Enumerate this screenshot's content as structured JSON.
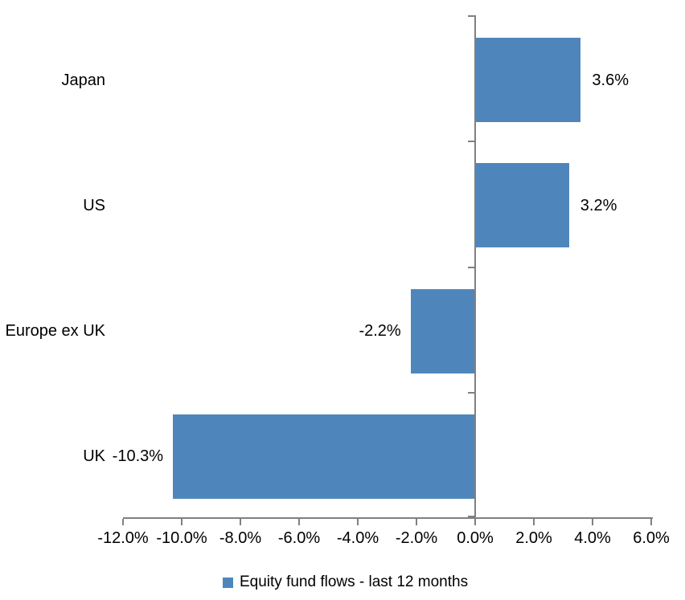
{
  "chart_data": {
    "type": "bar",
    "orientation": "horizontal",
    "title": "",
    "categories": [
      "Japan",
      "US",
      "Europe ex UK",
      "UK"
    ],
    "series": [
      {
        "name": "Equity fund flows - last 12 months",
        "values": [
          3.6,
          3.2,
          -2.2,
          -10.3
        ],
        "data_labels": [
          "3.6%",
          "3.2%",
          "-2.2%",
          "-10.3%"
        ]
      }
    ],
    "xlabel": "",
    "ylabel": "",
    "xlim": [
      -12,
      6
    ],
    "x_tick_step": 2,
    "x_tick_labels": [
      "-12.0%",
      "-10.0%",
      "-8.0%",
      "-6.0%",
      "-4.0%",
      "-2.0%",
      "0.0%",
      "2.0%",
      "4.0%",
      "6.0%"
    ],
    "grid": false,
    "legend_position": "bottom",
    "colors": {
      "bar": "#4E86BC",
      "axis": "#808080",
      "text": "#000000",
      "background": "#FFFFFF"
    }
  },
  "legend": {
    "label": "Equity fund flows - last 12 months"
  }
}
